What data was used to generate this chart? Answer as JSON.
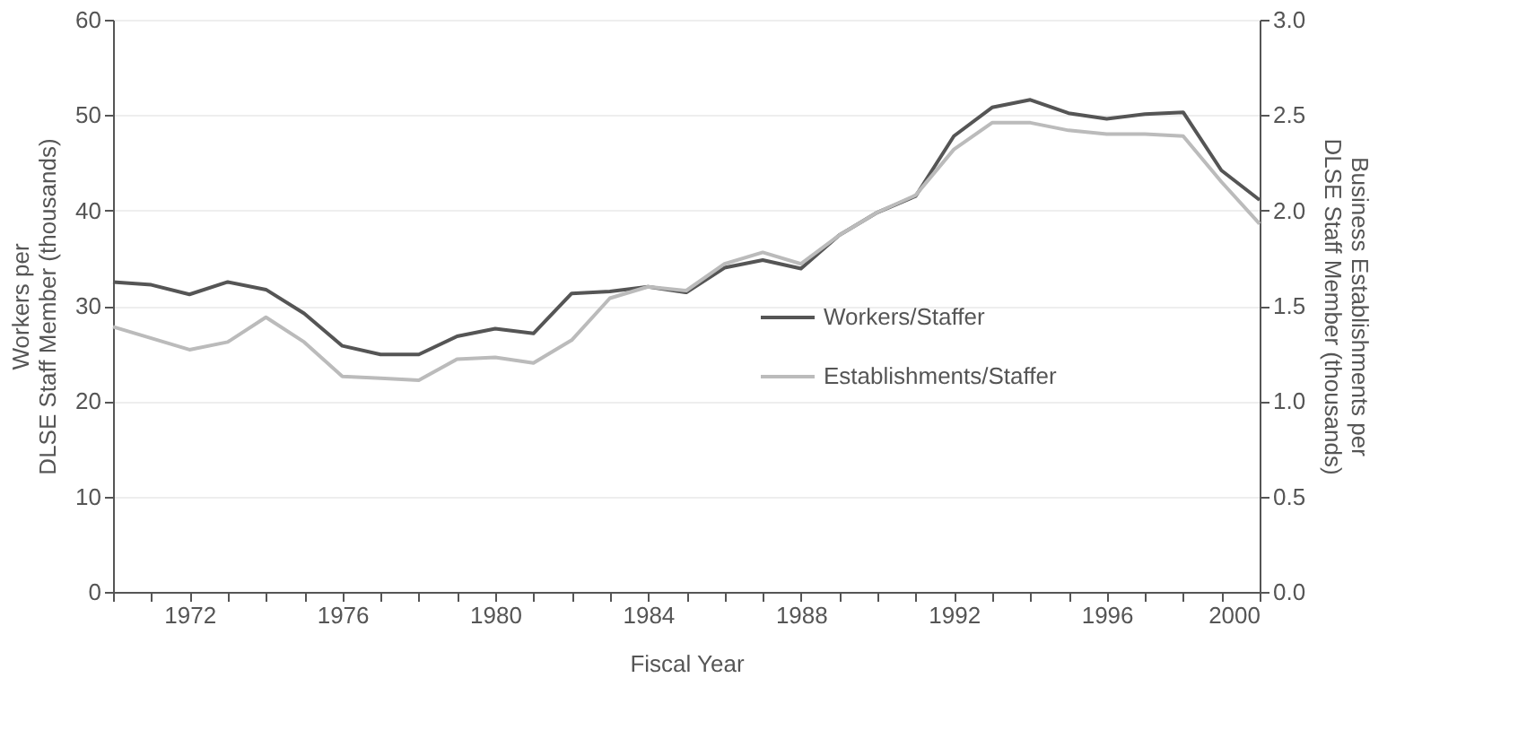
{
  "chart_data": {
    "type": "line",
    "xlabel": "Fiscal Year",
    "ylabel": "Workers per\nDLSE Staff Member (thousands)",
    "y2label": "Business Establishments per\nDLSE Staff Member (thousands)",
    "x": [
      1970,
      1971,
      1972,
      1973,
      1974,
      1975,
      1976,
      1977,
      1978,
      1979,
      1980,
      1981,
      1982,
      1983,
      1984,
      1985,
      1986,
      1987,
      1988,
      1989,
      1990,
      1991,
      1992,
      1993,
      1994,
      1995,
      1996,
      1997,
      1998,
      1999,
      2000
    ],
    "series": [
      {
        "name": "Workers/Staffer",
        "color": "#555555",
        "values": [
          32.5,
          32.2,
          31.2,
          32.5,
          31.7,
          29.2,
          25.8,
          24.9,
          24.9,
          26.8,
          27.6,
          27.1,
          31.3,
          31.5,
          32.0,
          31.4,
          34.0,
          34.8,
          33.9,
          37.4,
          39.8,
          41.5,
          47.8,
          50.8,
          51.6,
          50.2,
          49.6,
          50.1,
          50.3,
          44.2,
          41.1
        ]
      },
      {
        "name": "Establishments/Staffer",
        "color": "#bbbbbb",
        "axis": "y2",
        "values": [
          1.39,
          1.33,
          1.27,
          1.31,
          1.44,
          1.31,
          1.13,
          1.12,
          1.11,
          1.22,
          1.23,
          1.2,
          1.32,
          1.54,
          1.6,
          1.58,
          1.72,
          1.78,
          1.72,
          1.87,
          1.99,
          2.08,
          2.32,
          2.46,
          2.46,
          2.42,
          2.4,
          2.4,
          2.39,
          2.15,
          1.93
        ]
      }
    ],
    "xlim": [
      1970,
      2000
    ],
    "xticks": [
      {
        "value": 1970,
        "label": null
      },
      {
        "value": 1971,
        "label": null
      },
      1972,
      {
        "value": 1973,
        "label": null
      },
      {
        "value": 1974,
        "label": null
      },
      {
        "value": 1975,
        "label": null
      },
      1976,
      {
        "value": 1977,
        "label": null
      },
      {
        "value": 1978,
        "label": null
      },
      {
        "value": 1979,
        "label": null
      },
      1980,
      {
        "value": 1981,
        "label": null
      },
      {
        "value": 1982,
        "label": null
      },
      {
        "value": 1983,
        "label": null
      },
      1984,
      {
        "value": 1985,
        "label": null
      },
      {
        "value": 1986,
        "label": null
      },
      {
        "value": 1987,
        "label": null
      },
      1988,
      {
        "value": 1989,
        "label": null
      },
      {
        "value": 1990,
        "label": null
      },
      {
        "value": 1991,
        "label": null
      },
      1992,
      {
        "value": 1993,
        "label": null
      },
      {
        "value": 1994,
        "label": null
      },
      {
        "value": 1995,
        "label": null
      },
      1996,
      {
        "value": 1997,
        "label": null
      },
      {
        "value": 1998,
        "label": null
      },
      {
        "value": 1999,
        "label": null
      },
      2000
    ],
    "ylim": [
      0,
      60
    ],
    "yticks": [
      0,
      10,
      20,
      30,
      40,
      50,
      60
    ],
    "y2lim": [
      0,
      3
    ],
    "y2ticks": [
      {
        "value": 0,
        "label": "0.0"
      },
      {
        "value": 0.5,
        "label": "0.5"
      },
      {
        "value": 1,
        "label": "1.0"
      },
      {
        "value": 1.5,
        "label": "1.5"
      },
      {
        "value": 2,
        "label": "2.0"
      },
      {
        "value": 2.5,
        "label": "2.5"
      },
      {
        "value": 3,
        "label": "3.0"
      }
    ],
    "grid": "y",
    "legend": "right",
    "marker": "none",
    "line_style": "solid"
  }
}
